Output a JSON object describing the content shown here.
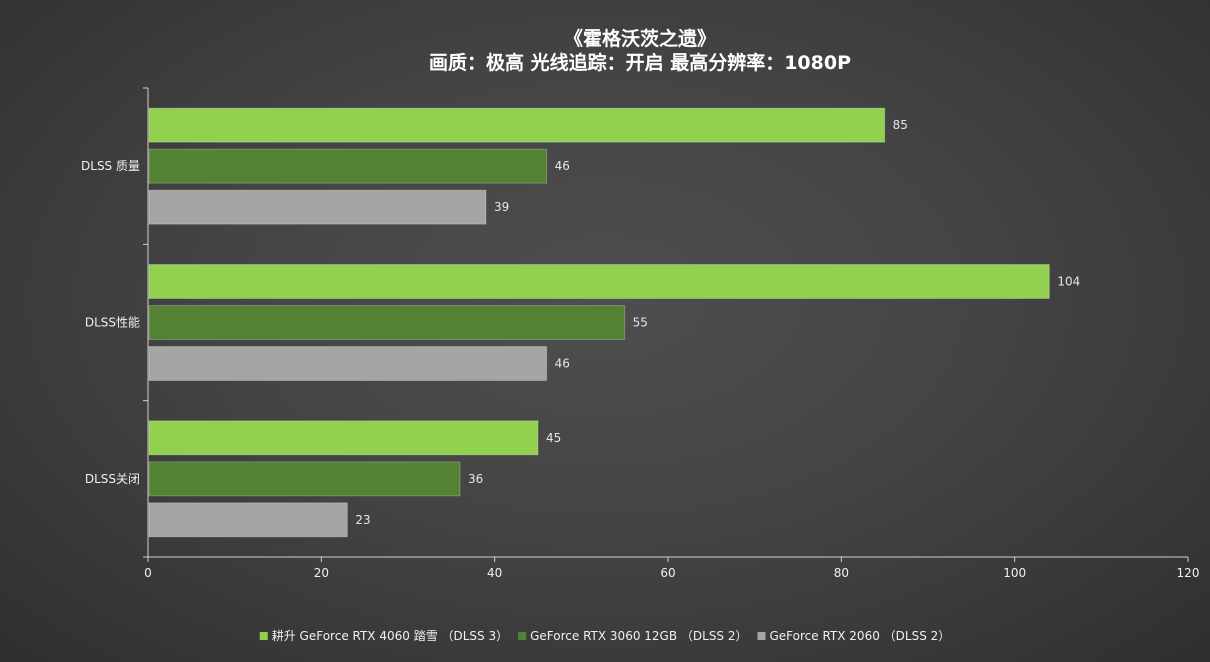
{
  "chart_data": {
    "type": "bar",
    "orientation": "horizontal",
    "title": "《霍格沃茨之遗》",
    "subtitle": "画质：极高  光线追踪：开启  最高分辨率：1080P",
    "categories": [
      "DLSS 质量",
      "DLSS性能",
      "DLSS关闭"
    ],
    "series": [
      {
        "name": "耕升 GeForce RTX 4060 踏雪 （DLSS 3）",
        "color": "#92d050",
        "values": [
          85,
          104,
          45
        ]
      },
      {
        "name": "GeForce RTX 3060 12GB （DLSS 2）",
        "color": "#548235",
        "values": [
          46,
          55,
          36
        ]
      },
      {
        "name": "GeForce RTX 2060 （DLSS 2）",
        "color": "#a5a5a5",
        "values": [
          39,
          46,
          23
        ]
      }
    ],
    "xlim": [
      0,
      120
    ],
    "xticks": [
      0,
      20,
      40,
      60,
      80,
      100,
      120
    ],
    "xlabel": "",
    "ylabel": "",
    "grid": false,
    "legend_position": "bottom"
  }
}
